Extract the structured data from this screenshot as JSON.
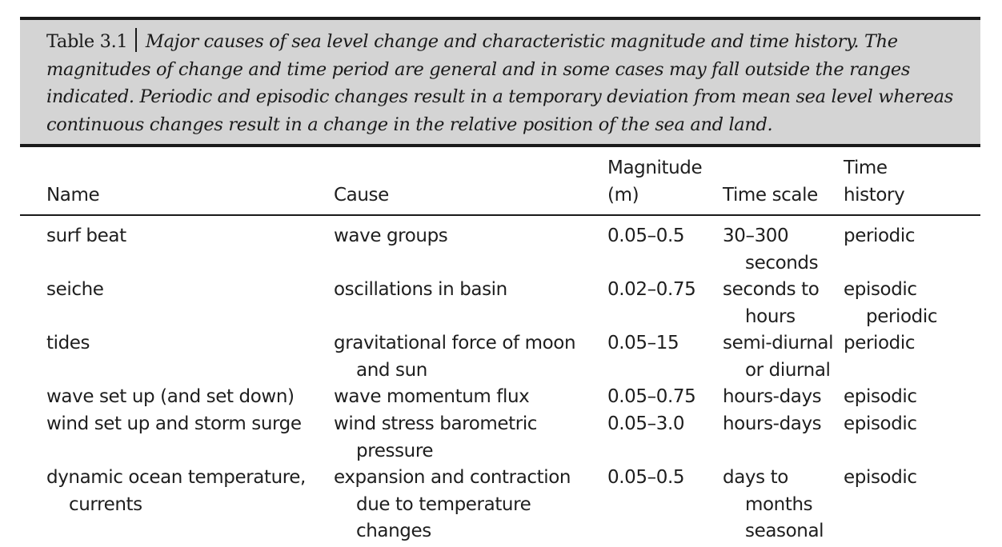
{
  "table": {
    "label": "Table 3.1",
    "caption": "Major causes of sea level change and characteristic magnitude and time history. The magnitudes of change and time period are general and in some cases may fall outside the ranges indicated. Periodic and episodic changes result in a temporary deviation from mean sea level whereas continuous changes result in a change in the relative position of the sea and land.",
    "headers": {
      "name": [
        "Name"
      ],
      "cause": [
        "Cause"
      ],
      "magnitude": [
        "Magnitude",
        "(m)"
      ],
      "time_scale": [
        "Time scale"
      ],
      "time_history": [
        "Time",
        "history"
      ]
    },
    "rows": [
      {
        "name": [
          "surf beat"
        ],
        "cause": [
          "wave groups"
        ],
        "magnitude": [
          "0.05–0.5"
        ],
        "time_scale": [
          "30–300",
          "seconds"
        ],
        "time_history": [
          "periodic"
        ]
      },
      {
        "name": [
          "seiche"
        ],
        "cause": [
          "oscillations in basin"
        ],
        "magnitude": [
          "0.02–0.75"
        ],
        "time_scale": [
          "seconds to",
          "hours"
        ],
        "time_history": [
          "episodic",
          "periodic"
        ]
      },
      {
        "name": [
          "tides"
        ],
        "cause": [
          "gravitational force of moon",
          "and sun"
        ],
        "magnitude": [
          "0.05–15"
        ],
        "time_scale": [
          "semi-diurnal",
          "or diurnal"
        ],
        "time_history": [
          "periodic"
        ]
      },
      {
        "name": [
          "wave set up (and set down)"
        ],
        "cause": [
          "wave momentum flux"
        ],
        "magnitude": [
          "0.05–0.75"
        ],
        "time_scale": [
          "hours-days"
        ],
        "time_history": [
          "episodic"
        ]
      },
      {
        "name": [
          "wind set up and storm surge"
        ],
        "cause": [
          "wind stress barometric",
          "pressure"
        ],
        "magnitude": [
          "0.05–3.0"
        ],
        "time_scale": [
          "hours-days"
        ],
        "time_history": [
          "episodic"
        ]
      },
      {
        "name": [
          "dynamic ocean temperature,",
          "currents"
        ],
        "cause": [
          "expansion and contraction",
          "due to temperature",
          "changes"
        ],
        "magnitude": [
          "0.05–0.5"
        ],
        "time_scale": [
          "days to",
          "months",
          "seasonal"
        ],
        "time_history": [
          "episodic"
        ]
      }
    ]
  }
}
